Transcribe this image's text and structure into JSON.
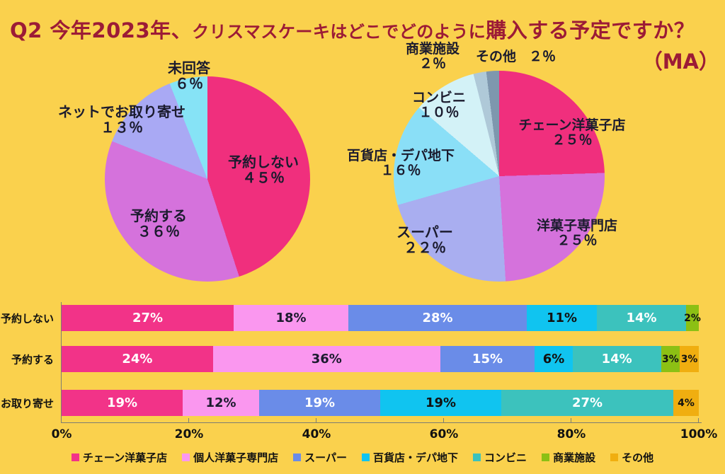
{
  "title": {
    "part1": "Q2 今年2023年、",
    "part2": "クリスマスケーキはどこでどのように",
    "part3": "購入する予定ですか？",
    "ma_note": "（MA）"
  },
  "colors": {
    "background": "#FAD14D",
    "title_text": "#9C1B36",
    "axis": "#7D7D72",
    "label_text": "#1B1B2E"
  },
  "chart_data": [
    {
      "type": "pie",
      "name": "reservation-method",
      "start_angle_deg": 0,
      "slices": [
        {
          "label": "予約しない",
          "value": 45,
          "pct": "４５％",
          "color": "#F02F7D"
        },
        {
          "label": "予約する",
          "value": 36,
          "pct": "３６％",
          "color": "#D572DC"
        },
        {
          "label": "ネットでお取り寄せ",
          "value": 13,
          "pct": "１３％",
          "color": "#A9A9F4"
        },
        {
          "label": "未回答",
          "value": 6,
          "pct": "６％",
          "color": "#86E3F6"
        }
      ]
    },
    {
      "type": "pie",
      "name": "purchase-location",
      "start_angle_deg": 0,
      "slices": [
        {
          "label": "チェーン洋菓子店",
          "value": 25,
          "pct": "２５％",
          "color": "#F02F7D"
        },
        {
          "label": "洋菓子専門店",
          "value": 25,
          "pct": "２５％",
          "color": "#D572DC"
        },
        {
          "label": "スーパー",
          "value": 22,
          "pct": "２２％",
          "color": "#A9AEF0"
        },
        {
          "label": "百貨店・デパ地下",
          "value": 16,
          "pct": "１６％",
          "color": "#8ADFF7"
        },
        {
          "label": "コンビニ",
          "value": 10,
          "pct": "１０％",
          "color": "#D3F2F7"
        },
        {
          "label": "商業施設",
          "value": 2,
          "pct": "２％",
          "color": "#AFC9D8"
        },
        {
          "label": "その他",
          "value": 2,
          "pct": "２％",
          "color": "#7E97AE"
        }
      ]
    },
    {
      "type": "bar",
      "stacked": true,
      "orientation": "horizontal",
      "categories": [
        "予約しない",
        "予約する",
        "お取り寄せ"
      ],
      "series": [
        {
          "key": "chain-cake-shop",
          "name": "チェーン洋菓子店",
          "color": "#F23388",
          "text_color": "#FFFFFF",
          "values": [
            27,
            24,
            19
          ]
        },
        {
          "key": "private-cake-shop",
          "name": "個人洋菓子専門店",
          "color": "#FA97EF",
          "text_color": "#1B1B2E",
          "values": [
            18,
            36,
            12
          ]
        },
        {
          "key": "supermarket",
          "name": "スーパー",
          "color": "#6A8CE8",
          "text_color": "#FFFFFF",
          "values": [
            28,
            15,
            19
          ]
        },
        {
          "key": "department-store",
          "name": "百貨店・デパ地下",
          "color": "#10C4F0",
          "text_color": "#111111",
          "values": [
            11,
            6,
            19
          ]
        },
        {
          "key": "convenience-store",
          "name": "コンビニ",
          "color": "#3CC2BD",
          "text_color": "#FFFFFF",
          "values": [
            14,
            14,
            27
          ]
        },
        {
          "key": "commercial-facility",
          "name": "商業施設",
          "color": "#8CC014",
          "text_color": "#111111",
          "values": [
            2,
            3,
            0
          ]
        },
        {
          "key": "other",
          "name": "その他",
          "color": "#F0AE10",
          "text_color": "#111111",
          "values": [
            0,
            3,
            4
          ]
        }
      ],
      "x_ticks": [
        "0%",
        "20%",
        "40%",
        "60%",
        "80%",
        "100%"
      ],
      "xlim": [
        0,
        100
      ],
      "legend_position": "bottom"
    }
  ]
}
